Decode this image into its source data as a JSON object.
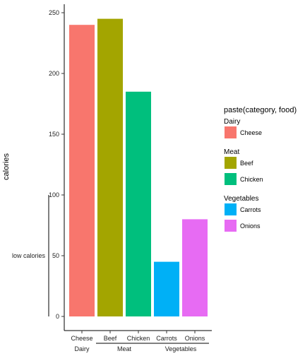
{
  "chart_data": {
    "type": "bar",
    "ylabel": "calories",
    "xlabel": "",
    "ylim": [
      0,
      260
    ],
    "y_ticks": [
      0,
      50,
      100,
      150,
      200,
      250
    ],
    "grid": false,
    "legend_position": "right",
    "categories": [
      "Cheese",
      "Beef",
      "Chicken",
      "Carrots",
      "Onions"
    ],
    "values": [
      240,
      245,
      185,
      45,
      80
    ],
    "bar_colors": [
      "#F8766D",
      "#A3A500",
      "#00BF7D",
      "#00B0F6",
      "#E76BF3"
    ],
    "groups": [
      {
        "name": "Dairy",
        "members": [
          "Cheese"
        ]
      },
      {
        "name": "Meat",
        "members": [
          "Beef",
          "Chicken"
        ]
      },
      {
        "name": "Vegetables",
        "members": [
          "Carrots",
          "Onions"
        ]
      }
    ],
    "bracket_annotation": {
      "label": "low calories",
      "from": 0,
      "to": 100
    },
    "legend": {
      "title": "paste(category, food)",
      "groups": [
        {
          "name": "Dairy",
          "items": [
            {
              "label": "Cheese",
              "color": "#F8766D"
            }
          ]
        },
        {
          "name": "Meat",
          "items": [
            {
              "label": "Beef",
              "color": "#A3A500"
            },
            {
              "label": "Chicken",
              "color": "#00BF7D"
            }
          ]
        },
        {
          "name": "Vegetables",
          "items": [
            {
              "label": "Carrots",
              "color": "#00B0F6"
            },
            {
              "label": "Onions",
              "color": "#E76BF3"
            }
          ]
        }
      ]
    }
  }
}
